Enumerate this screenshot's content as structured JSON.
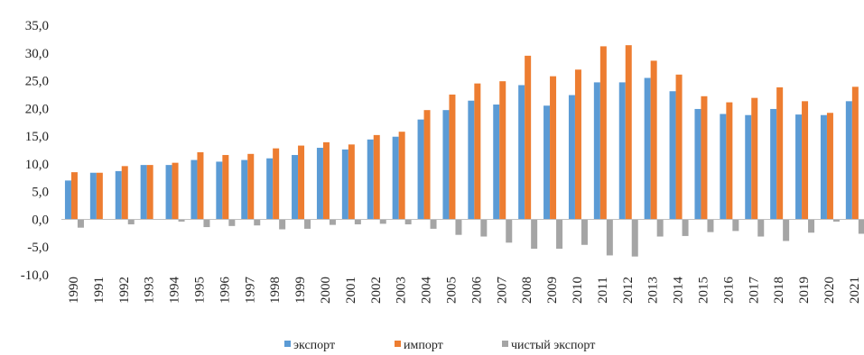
{
  "chart_data": {
    "type": "bar",
    "categories": [
      "1990",
      "1991",
      "1992",
      "1993",
      "1994",
      "1995",
      "1996",
      "1997",
      "1998",
      "1999",
      "2000",
      "2001",
      "2002",
      "2003",
      "2004",
      "2005",
      "2006",
      "2007",
      "2008",
      "2009",
      "2010",
      "2011",
      "2012",
      "2013",
      "2014",
      "2015",
      "2016",
      "2017",
      "2018",
      "2019",
      "2020",
      "2021"
    ],
    "series": [
      {
        "name": "экспорт",
        "color": "#5B9BD5",
        "values": [
          7.0,
          8.4,
          8.7,
          9.8,
          9.8,
          10.7,
          10.4,
          10.7,
          11.0,
          11.6,
          12.9,
          12.6,
          14.4,
          14.9,
          18.0,
          19.7,
          21.4,
          20.7,
          24.2,
          20.5,
          22.4,
          24.7,
          24.7,
          25.5,
          23.1,
          19.9,
          19.0,
          18.8,
          19.9,
          18.9,
          18.8,
          21.3
        ]
      },
      {
        "name": "импорт",
        "color": "#ED7D31",
        "values": [
          8.5,
          8.4,
          9.6,
          9.8,
          10.2,
          12.1,
          11.6,
          11.8,
          12.8,
          13.3,
          13.9,
          13.5,
          15.2,
          15.8,
          19.7,
          22.5,
          24.5,
          24.9,
          29.5,
          25.8,
          27.0,
          31.2,
          31.4,
          28.6,
          26.1,
          22.2,
          21.1,
          21.9,
          23.8,
          21.3,
          19.2,
          23.9
        ]
      },
      {
        "name": "чистый экспорт",
        "color": "#A5A5A5",
        "values": [
          -1.5,
          0.0,
          -0.9,
          0.0,
          -0.4,
          -1.4,
          -1.2,
          -1.1,
          -1.8,
          -1.7,
          -1.0,
          -0.9,
          -0.8,
          -0.9,
          -1.7,
          -2.8,
          -3.1,
          -4.2,
          -5.3,
          -5.3,
          -4.6,
          -6.5,
          -6.7,
          -3.1,
          -3.0,
          -2.3,
          -2.1,
          -3.1,
          -3.9,
          -2.4,
          -0.4,
          -2.6
        ]
      }
    ],
    "yticks": [
      "35,0",
      "30,0",
      "25,0",
      "20,0",
      "15,0",
      "10,0",
      "5,0",
      "0,0",
      "-5,0",
      "-10,0"
    ],
    "ylim": [
      -10,
      35
    ],
    "grid": false,
    "legend_position": "bottom"
  }
}
